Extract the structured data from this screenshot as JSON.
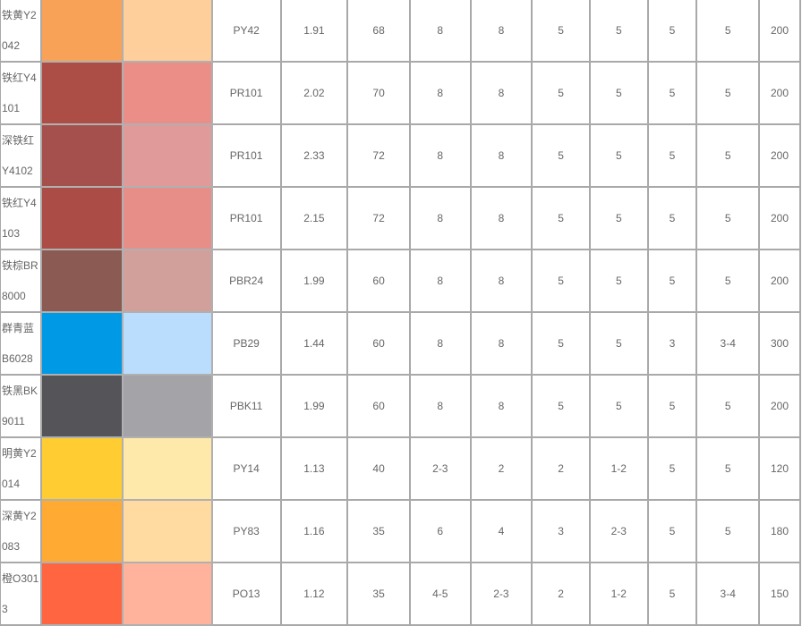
{
  "rows": [
    {
      "name": "铁黄Y2042",
      "color": "#F8A257",
      "tint": "#FECE9B",
      "code": "PY42",
      "c1": "1.91",
      "c2": "68",
      "c3": "8",
      "c4": "8",
      "c5": "5",
      "c6": "5",
      "c7": "5",
      "c8": "5",
      "c9": "200"
    },
    {
      "name": "铁红Y4101",
      "color": "#AC4E46",
      "tint": "#EA8E87",
      "code": "PR101",
      "c1": "2.02",
      "c2": "70",
      "c3": "8",
      "c4": "8",
      "c5": "5",
      "c6": "5",
      "c7": "5",
      "c8": "5",
      "c9": "200"
    },
    {
      "name": "深铁红Y4102",
      "color": "#A5504D",
      "tint": "#E09A9A",
      "code": "PR101",
      "c1": "2.33",
      "c2": "72",
      "c3": "8",
      "c4": "8",
      "c5": "5",
      "c6": "5",
      "c7": "5",
      "c8": "5",
      "c9": "200"
    },
    {
      "name": "铁红Y4103",
      "color": "#AB4C46",
      "tint": "#E88E88",
      "code": "PR101",
      "c1": "2.15",
      "c2": "72",
      "c3": "8",
      "c4": "8",
      "c5": "5",
      "c6": "5",
      "c7": "5",
      "c8": "5",
      "c9": "200"
    },
    {
      "name": "铁棕BR8000",
      "color": "#8B5A52",
      "tint": "#D2A09B",
      "code": "PBR24",
      "c1": "1.99",
      "c2": "60",
      "c3": "8",
      "c4": "8",
      "c5": "5",
      "c6": "5",
      "c7": "5",
      "c8": "5",
      "c9": "200"
    },
    {
      "name": "群青蓝B6028",
      "color": "#0099E6",
      "tint": "#BADDFE",
      "code": "PB29",
      "c1": "1.44",
      "c2": "60",
      "c3": "8",
      "c4": "8",
      "c5": "5",
      "c6": "5",
      "c7": "3",
      "c8": "3-4",
      "c9": "300"
    },
    {
      "name": "铁黑BK9011",
      "color": "#545459",
      "tint": "#A3A3A8",
      "code": "PBK11",
      "c1": "1.99",
      "c2": "60",
      "c3": "8",
      "c4": "8",
      "c5": "5",
      "c6": "5",
      "c7": "5",
      "c8": "5",
      "c9": "200"
    },
    {
      "name": "明黄Y2014",
      "color": "#FFCC31",
      "tint": "#FFE9AA",
      "code": "PY14",
      "c1": "1.13",
      "c2": "40",
      "c3": "2-3",
      "c4": "2",
      "c5": "2",
      "c6": "1-2",
      "c7": "5",
      "c8": "5",
      "c9": "120"
    },
    {
      "name": "深黄Y2083",
      "color": "#FFAA33",
      "tint": "#FFDBA1",
      "code": "PY83",
      "c1": "1.16",
      "c2": "35",
      "c3": "6",
      "c4": "4",
      "c5": "3",
      "c6": "2-3",
      "c7": "5",
      "c8": "5",
      "c9": "180"
    },
    {
      "name": "橙O3013",
      "color": "#FF6540",
      "tint": "#FFB39C",
      "code": "PO13",
      "c1": "1.12",
      "c2": "35",
      "c3": "4-5",
      "c4": "2-3",
      "c5": "2",
      "c6": "1-2",
      "c7": "5",
      "c8": "3-4",
      "c9": "150"
    }
  ]
}
